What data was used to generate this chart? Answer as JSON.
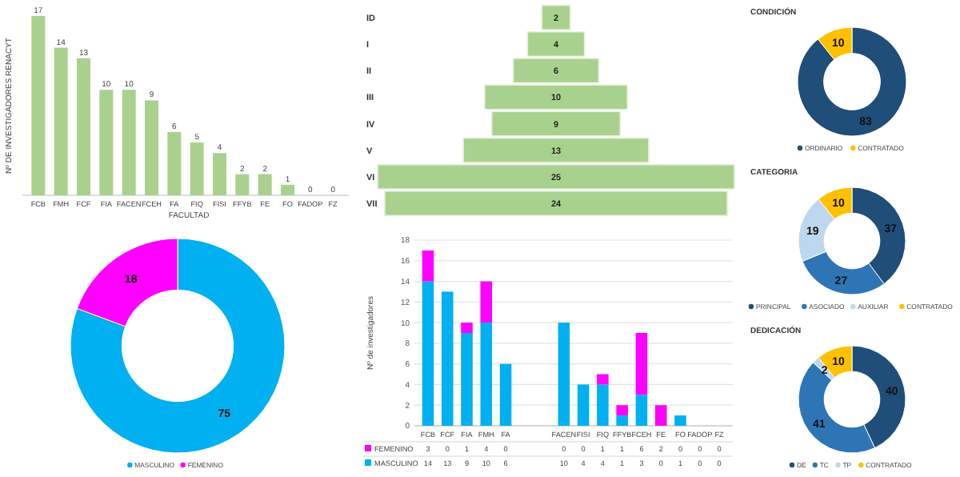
{
  "chart_data": [
    {
      "type": "bar",
      "ylabel": "Nº DE INVESTIGADORES RENACYT",
      "xlabel": "FACULTAD",
      "categories": [
        "FCB",
        "FMH",
        "FCF",
        "FIA",
        "FACEN",
        "FCEH",
        "FA",
        "FIQ",
        "FISI",
        "FFYB",
        "FE",
        "FO",
        "FADOP",
        "FZ"
      ],
      "values": [
        17,
        14,
        13,
        10,
        10,
        9,
        6,
        5,
        4,
        2,
        2,
        1,
        0,
        0
      ],
      "color": "#a9d18e",
      "data_labels": true
    },
    {
      "type": "donut",
      "categories": [
        "MASCULINO",
        "FEMENINO"
      ],
      "values": [
        75,
        18
      ],
      "colors": [
        "#00b0f0",
        "#ff00ff"
      ],
      "legend": "bottom",
      "data_labels": true
    },
    {
      "type": "other",
      "categories": [
        "ID",
        "I",
        "II",
        "III",
        "IV",
        "V",
        "VI",
        "VII"
      ],
      "values": [
        2,
        4,
        6,
        10,
        9,
        13,
        25,
        24
      ],
      "color": "#a9d18e",
      "data_labels": true
    },
    {
      "type": "bar",
      "stacked": true,
      "ylabel": "Nº de investigadores",
      "categories": [
        "FCB",
        "FCF",
        "FIA",
        "FMH",
        "FA",
        null,
        null,
        "FACEN",
        "FISI",
        "FIQ",
        "FFYB",
        "FCEH",
        "FE",
        "FO",
        "FADOP",
        "FZ"
      ],
      "ylim": [
        0,
        18
      ],
      "yticks": [
        0,
        2,
        4,
        6,
        8,
        10,
        12,
        14,
        16,
        18
      ],
      "grid": "y",
      "legend": "bottom left",
      "data_labels": true,
      "series": [
        {
          "name": "MASCULINO",
          "color": "#00b0f0",
          "values": [
            14,
            13,
            9,
            10,
            6,
            null,
            null,
            10,
            4,
            4,
            1,
            3,
            0,
            1,
            0,
            0
          ]
        },
        {
          "name": "FEMENINO",
          "color": "#ff00ff",
          "values": [
            3,
            0,
            1,
            4,
            0,
            null,
            null,
            0,
            0,
            1,
            1,
            6,
            2,
            0,
            0,
            0
          ]
        }
      ]
    },
    {
      "type": "donut",
      "title": "CONDICIÓN",
      "categories": [
        "ORDINARIO",
        "CONTRATADO"
      ],
      "values": [
        83,
        10
      ],
      "colors": [
        "#1f4e79",
        "#ffc000"
      ],
      "legend": "bottom",
      "data_labels": true
    },
    {
      "type": "donut",
      "title": "CATEGORIA",
      "categories": [
        "PRINCIPAL",
        "ASOCIADO",
        "AUXILIAR",
        "CONTRATADO"
      ],
      "values": [
        37,
        27,
        19,
        10
      ],
      "colors": [
        "#1f4e79",
        "#2e75b6",
        "#bdd7ee",
        "#ffc000"
      ],
      "legend": "bottom",
      "data_labels": true
    },
    {
      "type": "donut",
      "title": "DEDICACIÓN",
      "categories": [
        "DE",
        "TC",
        "TP",
        "CONTRATADO"
      ],
      "values": [
        40,
        41,
        2,
        10
      ],
      "colors": [
        "#1f4e79",
        "#2e75b6",
        "#bdd7ee",
        "#ffc000"
      ],
      "legend": "bottom",
      "data_labels": true
    }
  ]
}
